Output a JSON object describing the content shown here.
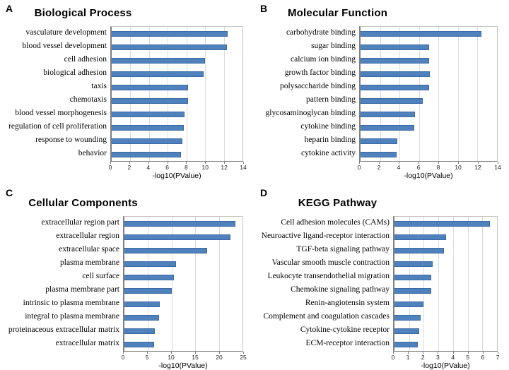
{
  "colors": {
    "bar_fill": "#4f81bd",
    "bar_border": "#3a6aa5",
    "gridline": "#dcdcdc",
    "axis": "#7f7f7f",
    "background": "#ffffff"
  },
  "chart_data": [
    {
      "type": "bar",
      "orientation": "horizontal",
      "panel": "A",
      "title": "Biological Process",
      "xlabel": "-log10(PValue)",
      "xlim": [
        0,
        14
      ],
      "xticks": [
        0,
        2,
        4,
        6,
        8,
        10,
        12,
        14
      ],
      "grid": true,
      "categories": [
        "vasculature development",
        "blood vessel development",
        "cell adhesion",
        "biological adhesion",
        "taxis",
        "chemotaxis",
        "blood vessel morphogenesis",
        "regulation of cell proliferation",
        "response to wounding",
        "behavior"
      ],
      "values": [
        12.4,
        12.3,
        10.0,
        9.8,
        8.2,
        8.2,
        7.8,
        7.7,
        7.6,
        7.4
      ]
    },
    {
      "type": "bar",
      "orientation": "horizontal",
      "panel": "B",
      "title": "Molecular Function",
      "xlabel": "-log10(PValue)",
      "xlim": [
        0,
        14
      ],
      "xticks": [
        0,
        2,
        4,
        6,
        8,
        10,
        12,
        14
      ],
      "grid": true,
      "categories": [
        "carbohydrate binding",
        "sugar binding",
        "calcium ion binding",
        "growth factor binding",
        "polysaccharide binding",
        "pattern binding",
        "glycosaminoglycan binding",
        "cytokine binding",
        "heparin binding",
        "cytokine activity"
      ],
      "values": [
        12.4,
        7.0,
        7.0,
        7.1,
        7.0,
        6.4,
        5.6,
        5.5,
        3.8,
        3.7
      ]
    },
    {
      "type": "bar",
      "orientation": "horizontal",
      "panel": "C",
      "title": "Cellular Components",
      "xlabel": "-log10(PValue)",
      "xlim": [
        0,
        25
      ],
      "xticks": [
        0,
        5,
        10,
        15,
        20,
        25
      ],
      "grid": true,
      "categories": [
        "extracellular region part",
        "extracellular region",
        "extracellular space",
        "plasma membrane",
        "cell surface",
        "plasma membrane part",
        "intrinsic to plasma membrane",
        "integral to plasma membrane",
        "proteinaceous extracellular matrix",
        "extracellular matrix"
      ],
      "values": [
        23.5,
        22.5,
        17.5,
        11.0,
        10.5,
        10.0,
        7.5,
        7.3,
        6.5,
        6.3
      ]
    },
    {
      "type": "bar",
      "orientation": "horizontal",
      "panel": "D",
      "title": "KEGG Pathway",
      "xlabel": "-log10(PValue)",
      "xlim": [
        0,
        7
      ],
      "xticks": [
        0,
        1,
        2,
        3,
        4,
        5,
        6,
        7
      ],
      "grid": true,
      "categories": [
        "Cell adhesion molecules (CAMs)",
        "Neuroactive ligand-receptor interaction",
        "TGF-beta signaling pathway",
        "Vascular smooth muscle contraction",
        "Leukocyte transendothelial migration",
        "Chemokine signaling pathway",
        "Renin-angiotensin system",
        "Complement and coagulation cascades",
        "Cytokine-cytokine receptor",
        "ECM-receptor interaction"
      ],
      "values": [
        6.5,
        3.5,
        3.4,
        2.6,
        2.5,
        2.5,
        2.0,
        1.8,
        1.7,
        1.6
      ]
    }
  ]
}
